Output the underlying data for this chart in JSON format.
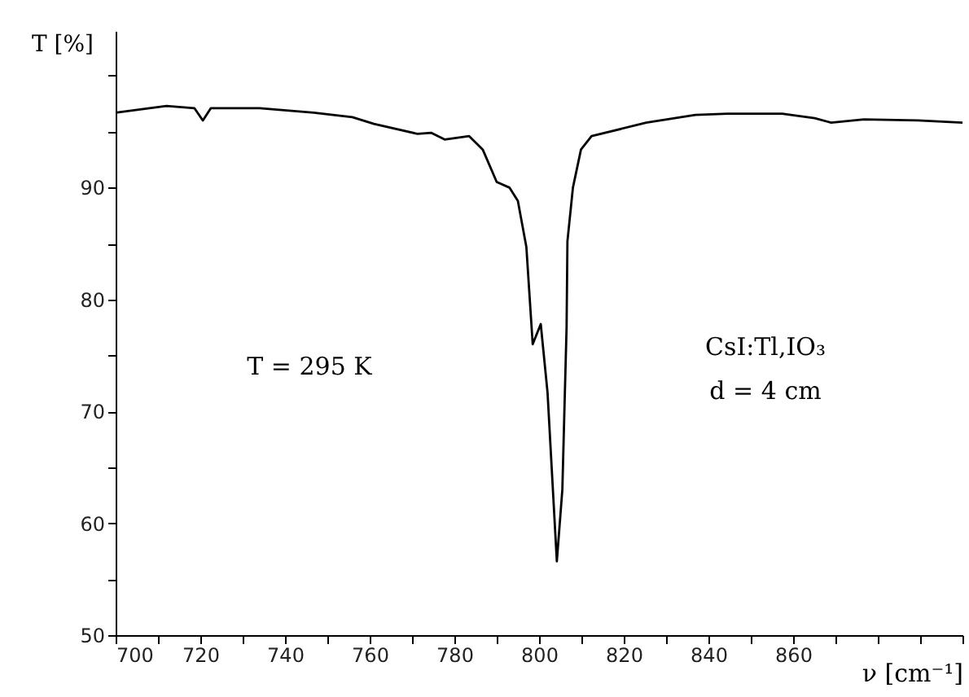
{
  "chart_data": {
    "type": "line",
    "xlabel": "ν [cm⁻¹]",
    "ylabel": "T [%]",
    "annotations": [
      "T = 295 K",
      "CsI:Tl,IO₃",
      "d = 4 cm"
    ],
    "x": [
      700,
      712,
      718.6,
      720.6,
      722.5,
      734,
      746.8,
      755.9,
      761,
      771.3,
      774.5,
      777.7,
      783.5,
      786.7,
      790,
      793,
      795,
      797,
      798.5,
      800.4,
      802,
      804.2,
      805.5,
      806.5,
      806.7,
      808,
      809.9,
      812.4,
      825.3,
      836.9,
      844.6,
      857.4,
      865.1,
      869,
      876.7,
      889.5,
      900
    ],
    "series": [
      {
        "color": "#000000",
        "values": [
          96.7,
          97.3,
          97.1,
          96.0,
          97.1,
          97.1,
          96.7,
          96.3,
          95.7,
          94.8,
          94.9,
          94.3,
          94.6,
          93.4,
          90.5,
          90.0,
          88.8,
          84.7,
          76.0,
          77.8,
          71.7,
          56.6,
          63.0,
          77.5,
          85.2,
          90.0,
          93.4,
          94.6,
          95.8,
          96.5,
          96.6,
          96.6,
          96.2,
          95.8,
          96.1,
          96.0,
          95.8
        ]
      }
    ],
    "xlim": [
      700,
      900
    ],
    "ylim": [
      50,
      104
    ],
    "xticks": [
      700,
      {
        "value": 710,
        "label": null
      },
      720,
      {
        "value": 730,
        "label": null
      },
      740,
      {
        "value": 750,
        "label": null
      },
      760,
      {
        "value": 770,
        "label": null
      },
      780,
      {
        "value": 790,
        "label": null
      },
      800,
      {
        "value": 810,
        "label": null
      },
      820,
      {
        "value": 830,
        "label": null
      },
      840,
      {
        "value": 850,
        "label": null
      },
      860,
      {
        "value": 870,
        "label": null
      },
      {
        "value": 880,
        "label": null
      },
      {
        "value": 890,
        "label": null
      },
      {
        "value": 900,
        "label": null
      }
    ],
    "yticks": [
      50,
      {
        "value": 55,
        "label": null
      },
      60,
      {
        "value": 65,
        "label": null
      },
      70,
      {
        "value": 75,
        "label": null
      },
      80,
      {
        "value": 85,
        "label": null
      },
      90,
      {
        "value": 95,
        "label": null
      },
      {
        "value": 100,
        "label": null
      }
    ],
    "grid": false,
    "marker": "none",
    "line_style": "solid"
  }
}
